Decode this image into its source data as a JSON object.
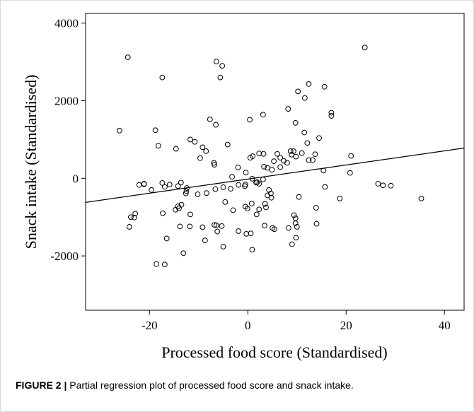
{
  "caption": {
    "label": "FIGURE 2 |",
    "text": " Partial regression plot of processed food score and snack intake."
  },
  "chart_data": {
    "type": "scatter",
    "title": "",
    "xlabel": "Processed food score (Standardised)",
    "ylabel": "Snack intake (Standardised)",
    "xlim": [
      -33,
      44
    ],
    "ylim": [
      -3400,
      4250
    ],
    "xticks": [
      -20,
      0,
      20,
      40
    ],
    "yticks": [
      -2000,
      0,
      2000,
      4000
    ],
    "xtick_labels": [
      "-20",
      "0",
      "20",
      "40"
    ],
    "ytick_labels": [
      "-2000",
      "0",
      "2000",
      "4000"
    ],
    "grid": false,
    "marker": "open-circle",
    "fit_line": {
      "x": [
        -33,
        44
      ],
      "y": [
        -620,
        780
      ]
    },
    "points": [
      [
        -24.4,
        3120
      ],
      [
        -6.4,
        3010
      ],
      [
        -5.2,
        2900
      ],
      [
        -5.6,
        2600
      ],
      [
        -17.4,
        2600
      ],
      [
        23.8,
        3370
      ],
      [
        -26.1,
        1230
      ],
      [
        -18.8,
        1240
      ],
      [
        -18.2,
        840
      ],
      [
        -14.6,
        760
      ],
      [
        -11.7,
        1000
      ],
      [
        -10.8,
        940
      ],
      [
        -9.2,
        800
      ],
      [
        -7.7,
        1520
      ],
      [
        -6.5,
        1380
      ],
      [
        -4.1,
        870
      ],
      [
        0.4,
        1510
      ],
      [
        3.1,
        1640
      ],
      [
        8.2,
        1790
      ],
      [
        10.2,
        2240
      ],
      [
        11.6,
        2070
      ],
      [
        12.4,
        2430
      ],
      [
        15.6,
        2360
      ],
      [
        17.0,
        1690
      ],
      [
        17.0,
        1610
      ],
      [
        9.7,
        1430
      ],
      [
        11.5,
        1180
      ],
      [
        14.5,
        1040
      ],
      [
        12.1,
        910
      ],
      [
        2.3,
        640
      ],
      [
        3.2,
        630
      ],
      [
        6.0,
        630
      ],
      [
        6.6,
        530
      ],
      [
        8.0,
        400
      ],
      [
        9.3,
        700
      ],
      [
        8.7,
        700
      ],
      [
        8.9,
        610
      ],
      [
        9.8,
        560
      ],
      [
        11.0,
        650
      ],
      [
        12.4,
        470
      ],
      [
        13.2,
        470
      ],
      [
        13.7,
        620
      ],
      [
        -9.7,
        520
      ],
      [
        -8.5,
        700
      ],
      [
        -6.9,
        400
      ],
      [
        -6.8,
        350
      ],
      [
        -3.2,
        40
      ],
      [
        -2.0,
        280
      ],
      [
        -0.4,
        150
      ],
      [
        0.5,
        530
      ],
      [
        1.0,
        570
      ],
      [
        1.9,
        -100
      ],
      [
        3.3,
        300
      ],
      [
        4.0,
        270
      ],
      [
        4.9,
        220
      ],
      [
        5.3,
        440
      ],
      [
        6.6,
        290
      ],
      [
        7.3,
        450
      ],
      [
        -21.1,
        -140
      ],
      [
        -21.1,
        -150
      ],
      [
        -22.1,
        -170
      ],
      [
        -19.6,
        -300
      ],
      [
        -17.4,
        -120
      ],
      [
        -16.9,
        -220
      ],
      [
        -15.9,
        -160
      ],
      [
        -14.2,
        -200
      ],
      [
        -13.6,
        -110
      ],
      [
        -12.4,
        -250
      ],
      [
        -12.5,
        -330
      ],
      [
        -12.6,
        -390
      ],
      [
        -10.2,
        -410
      ],
      [
        -8.4,
        -380
      ],
      [
        -6.6,
        -280
      ],
      [
        -5.0,
        -230
      ],
      [
        -3.5,
        -270
      ],
      [
        -1.9,
        -170
      ],
      [
        -0.5,
        -160
      ],
      [
        -0.6,
        -200
      ],
      [
        0.9,
        -10
      ],
      [
        1.7,
        -110
      ],
      [
        2.3,
        -140
      ],
      [
        3.1,
        -30
      ],
      [
        4.3,
        -300
      ],
      [
        4.7,
        -390
      ],
      [
        4.0,
        -440
      ],
      [
        4.8,
        -500
      ],
      [
        3.5,
        -660
      ],
      [
        3.7,
        -750
      ],
      [
        15.4,
        200
      ],
      [
        21.0,
        580
      ],
      [
        20.8,
        140
      ],
      [
        26.5,
        -140
      ],
      [
        27.5,
        -180
      ],
      [
        29.1,
        -190
      ],
      [
        35.3,
        -520
      ],
      [
        15.7,
        -220
      ],
      [
        18.7,
        -520
      ],
      [
        13.9,
        -760
      ],
      [
        10.4,
        -480
      ],
      [
        9.4,
        -950
      ],
      [
        9.7,
        -1030
      ],
      [
        14.0,
        -1170
      ],
      [
        -23.8,
        -1000
      ],
      [
        -23.1,
        -1010
      ],
      [
        -22.9,
        -910
      ],
      [
        -24.1,
        -1250
      ],
      [
        -17.3,
        -900
      ],
      [
        -16.5,
        -1550
      ],
      [
        -14.7,
        -810
      ],
      [
        -14.0,
        -770
      ],
      [
        -14.2,
        -720
      ],
      [
        -13.5,
        -680
      ],
      [
        -13.8,
        -1240
      ],
      [
        -11.8,
        -1240
      ],
      [
        -11.7,
        -930
      ],
      [
        -9.2,
        -1260
      ],
      [
        -8.7,
        -1600
      ],
      [
        -6.4,
        -1210
      ],
      [
        -5.3,
        -1230
      ],
      [
        -6.2,
        -1370
      ],
      [
        -5.0,
        -1760
      ],
      [
        -4.6,
        -610
      ],
      [
        -3.0,
        -820
      ],
      [
        -1.9,
        -1360
      ],
      [
        -0.3,
        -1430
      ],
      [
        0.6,
        -1420
      ],
      [
        0.9,
        -1840
      ],
      [
        -0.1,
        -780
      ],
      [
        -0.5,
        -730
      ],
      [
        0.8,
        -650
      ],
      [
        1.8,
        -930
      ],
      [
        2.3,
        -800
      ],
      [
        3.4,
        -1220
      ],
      [
        5.0,
        -1280
      ],
      [
        5.4,
        -1310
      ],
      [
        8.3,
        -1280
      ],
      [
        9.0,
        -1700
      ],
      [
        9.7,
        -1160
      ],
      [
        10.0,
        -1250
      ],
      [
        9.8,
        -1530
      ],
      [
        -18.6,
        -2210
      ],
      [
        -16.9,
        -2220
      ],
      [
        -13.1,
        -1930
      ],
      [
        -6.8,
        -1200
      ]
    ]
  }
}
